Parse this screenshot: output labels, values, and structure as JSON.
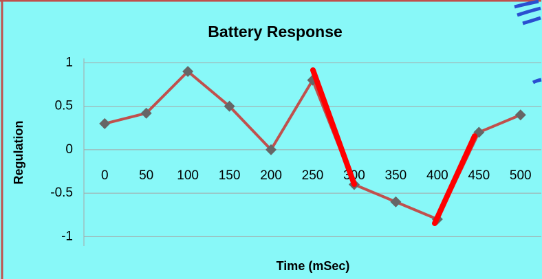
{
  "chart_data": {
    "type": "line",
    "title": "Battery Response",
    "x_label": "Time (mSec)",
    "y_label": "Regulation",
    "x": [
      0,
      50,
      100,
      150,
      200,
      250,
      300,
      350,
      400,
      450,
      500
    ],
    "series": [
      {
        "color": "#c0504d",
        "marker_color": "#666666",
        "values": [
          0.3,
          0.42,
          0.9,
          0.5,
          0,
          0.8,
          -0.4,
          -0.6,
          -0.8,
          0.2,
          0.4
        ]
      }
    ],
    "xlim": [
      -25,
      525
    ],
    "xticks": [
      0,
      50,
      100,
      150,
      200,
      250,
      300,
      350,
      400,
      450,
      500
    ],
    "ylim": [
      -1.1,
      1.05
    ],
    "yticks": [
      1,
      0.5,
      0,
      -0.5,
      -1
    ],
    "grid": true
  }
}
